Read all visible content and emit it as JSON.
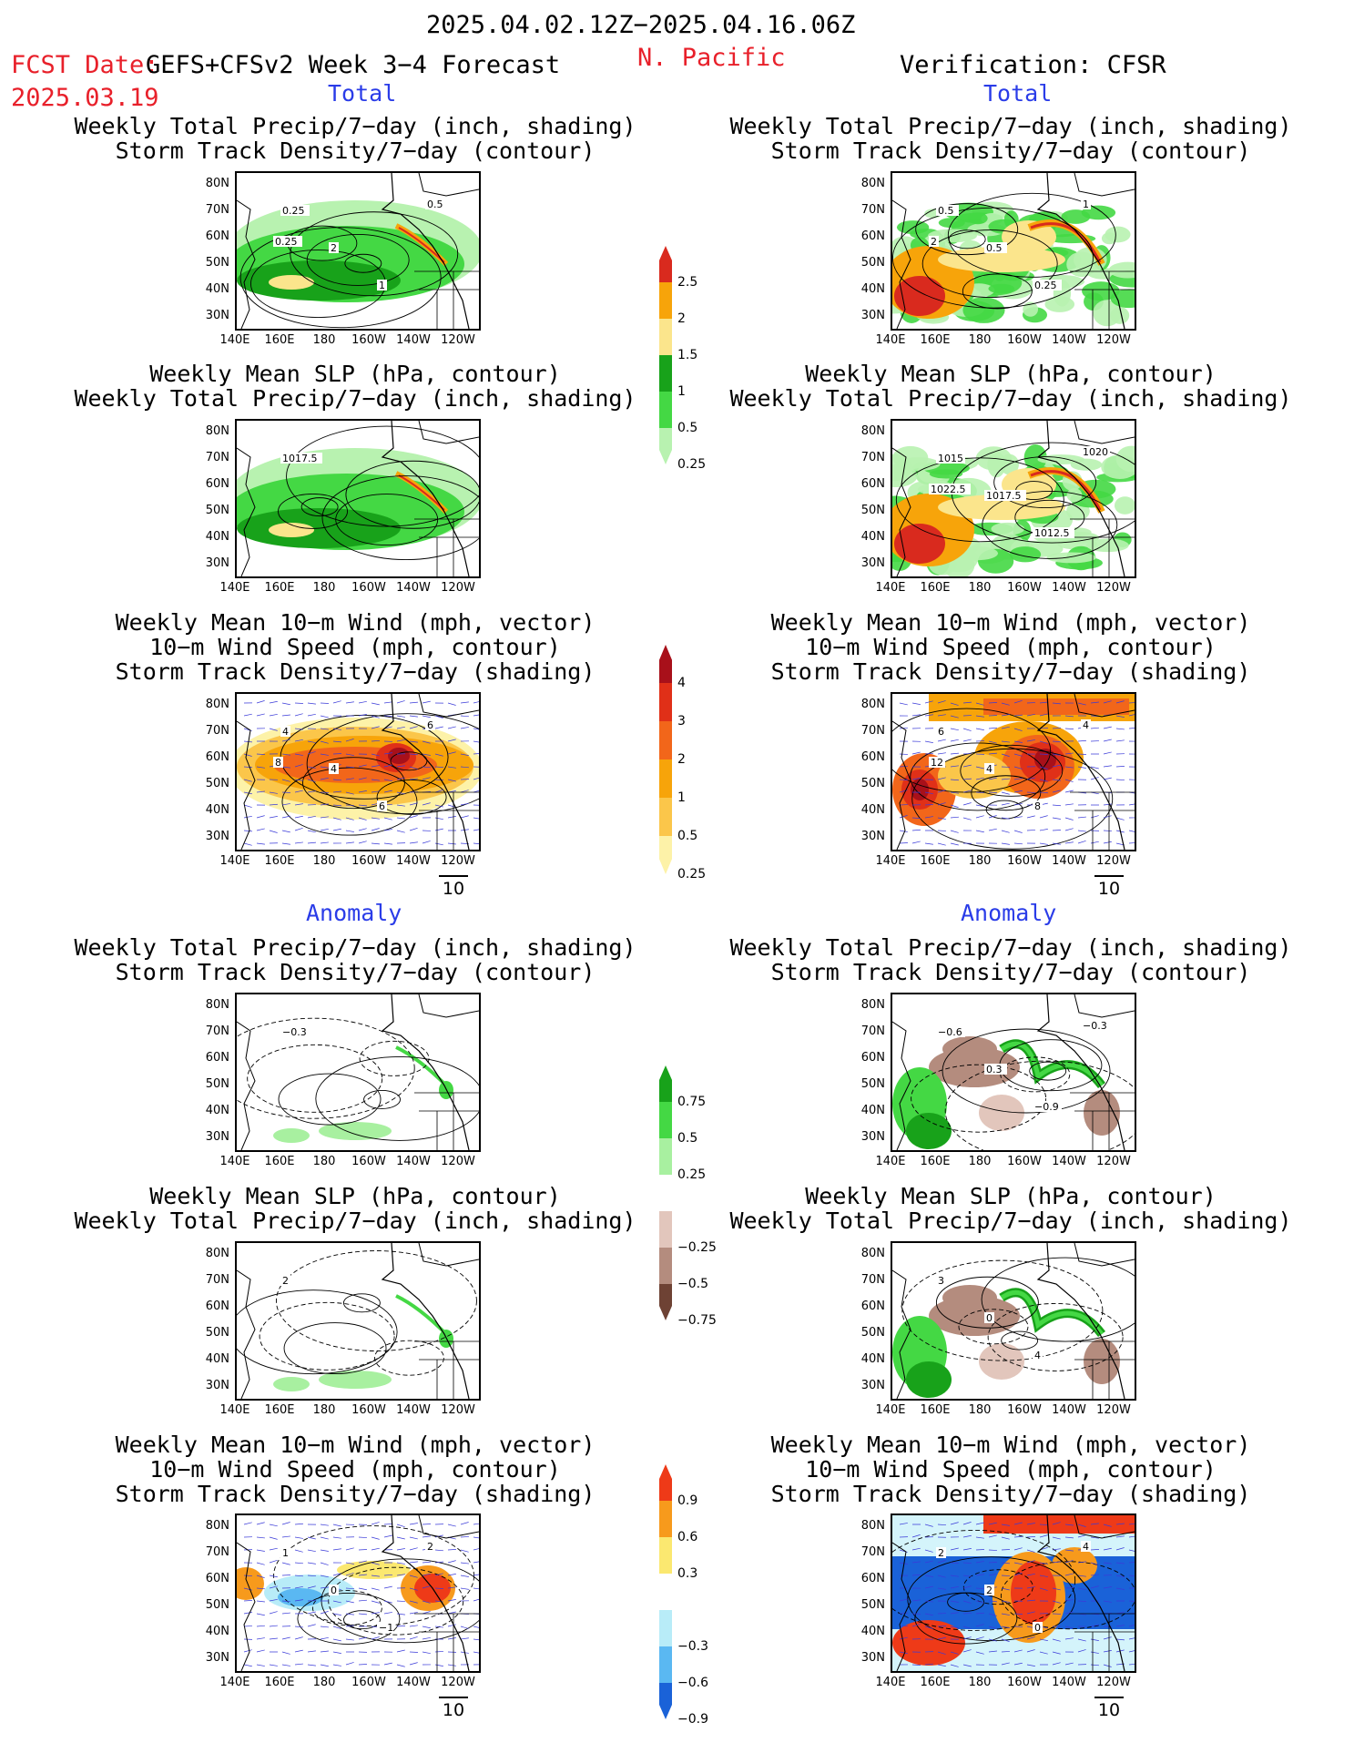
{
  "header": {
    "date_range": "2025.04.02.12Z−2025.04.16.06Z",
    "fcst_label": "FCST Date:",
    "fcst_product": "GEFS+CFSv2 Week 3−4 Forecast",
    "fcst_date": "2025.03.19",
    "region": "N. Pacific",
    "verification": "Verification: CFSR"
  },
  "sections": {
    "total": "Total",
    "anomaly": "Anomaly"
  },
  "panel_titles": {
    "precip_track": [
      "Weekly Total Precip/7−day (inch, shading)",
      "Storm Track Density/7−day (contour)"
    ],
    "slp_precip": [
      "Weekly Mean SLP (hPa, contour)",
      "Weekly Total Precip/7−day (inch, shading)"
    ],
    "wind_track": [
      "Weekly Mean 10−m Wind (mph, vector)",
      "10−m Wind Speed (mph, contour)",
      "Storm Track Density/7−day (shading)"
    ]
  },
  "axes": {
    "lat_ticks": [
      "80N",
      "70N",
      "60N",
      "50N",
      "40N",
      "30N"
    ],
    "lon_ticks": [
      "140E",
      "160E",
      "180",
      "160W",
      "140W",
      "120W"
    ]
  },
  "vector_ref": "10",
  "colorbars": {
    "precip_total": {
      "labels": [
        "2.5",
        "2",
        "1.5",
        "1",
        "0.5",
        "0.25"
      ],
      "colors": [
        "#d92a1e",
        "#f7a40a",
        "#fbe58c",
        "#18a21a",
        "#44d844",
        "#b8f2b0"
      ]
    },
    "track_total": {
      "labels": [
        "4",
        "3",
        "2",
        "1",
        "0.5",
        "0.25"
      ],
      "colors": [
        "#a8101a",
        "#e03018",
        "#f2661a",
        "#f7a40a",
        "#fbc64a",
        "#fdf2a8"
      ]
    },
    "precip_anom": {
      "labels": [
        "0.75",
        "0.5",
        "0.25",
        "−0.25",
        "−0.5",
        "−0.75"
      ],
      "colors": [
        "#18a21a",
        "#44d844",
        "#a8f0a0",
        "#ffffff",
        "#e2c6bc",
        "#b48c7e",
        "#6e4234"
      ]
    },
    "track_anom": {
      "labels": [
        "0.9",
        "0.6",
        "0.3",
        "−0.3",
        "−0.6",
        "−0.9"
      ],
      "colors": [
        "#ee3a18",
        "#f79a1c",
        "#fbe870",
        "#ffffff",
        "#b8ecf8",
        "#5ab8f2",
        "#1a62d8"
      ]
    }
  },
  "contour_labels": {
    "r1l": [
      "0.25",
      "2",
      "1",
      "0.5",
      "0.25"
    ],
    "r1r": [
      "0.5",
      "0.5",
      "0.25",
      "1",
      "2"
    ],
    "r2l": [
      "1017.5"
    ],
    "r2r": [
      "1015",
      "1017.5",
      "1012.5",
      "1020",
      "1022.5"
    ],
    "r3l": [
      "4",
      "4",
      "6",
      "6",
      "8"
    ],
    "r3r": [
      "6",
      "4",
      "8",
      "4",
      "12"
    ],
    "r4l": [
      "−0.3"
    ],
    "r4r": [
      "−0.6",
      "0.3",
      "−0.9",
      "−0.3"
    ],
    "r5l": [
      "2"
    ],
    "r5r": [
      "3",
      "0",
      "4"
    ],
    "r6l": [
      "1",
      "0",
      "−1",
      "2"
    ],
    "r6r": [
      "2",
      "2",
      "0",
      "4"
    ]
  }
}
